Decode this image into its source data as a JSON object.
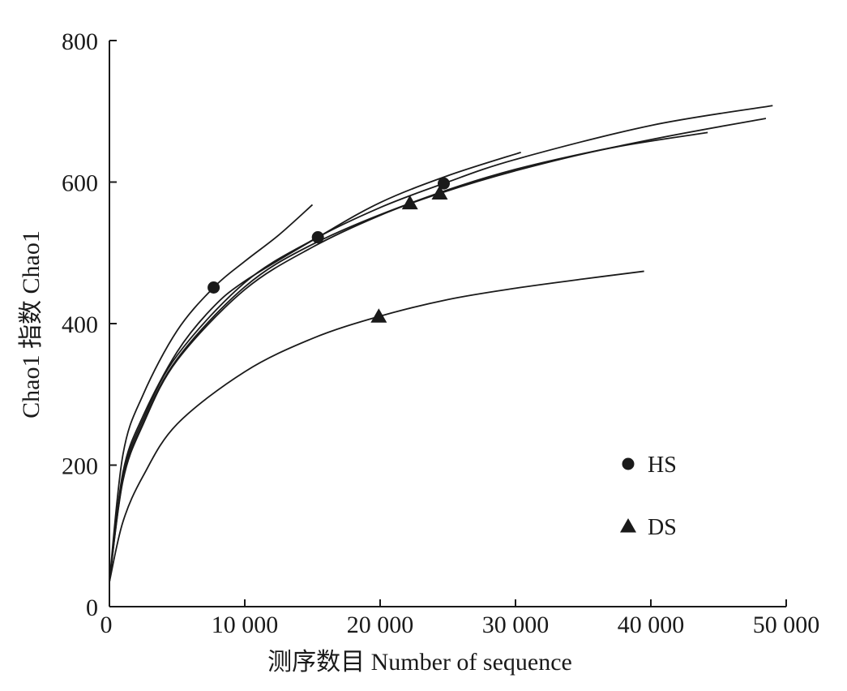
{
  "chart_data": {
    "type": "line",
    "title": "",
    "xlabel": "测序数目 Number of sequence",
    "ylabel": "Chao1 指数 Chao1",
    "xlim": [
      0,
      50000
    ],
    "ylim": [
      0,
      800
    ],
    "x_ticks": [
      {
        "value": 0,
        "label": "0"
      },
      {
        "value": 10000,
        "label": "10 000"
      },
      {
        "value": 20000,
        "label": "20 000"
      },
      {
        "value": 30000,
        "label": "30 000"
      },
      {
        "value": 40000,
        "label": "40 000"
      },
      {
        "value": 50000,
        "label": "50 000"
      }
    ],
    "y_ticks": [
      {
        "value": 0,
        "label": "0"
      },
      {
        "value": 200,
        "label": "200"
      },
      {
        "value": 400,
        "label": "400"
      },
      {
        "value": 600,
        "label": "600"
      },
      {
        "value": 800,
        "label": "800"
      }
    ],
    "grid": false,
    "legend": {
      "position": "lower-right",
      "entries": [
        {
          "label": "HS",
          "marker": "circle"
        },
        {
          "label": "DS",
          "marker": "triangle"
        }
      ]
    },
    "line_color": "#1a1a1a",
    "series": [
      {
        "group": "HS",
        "marker": "circle",
        "marker_point": [
          7700,
          451
        ],
        "points": [
          [
            0,
            35
          ],
          [
            1000,
            215
          ],
          [
            2500,
            300
          ],
          [
            5000,
            390
          ],
          [
            7700,
            451
          ],
          [
            10000,
            488
          ],
          [
            12500,
            525
          ],
          [
            15000,
            568
          ]
        ]
      },
      {
        "group": "HS",
        "marker": "circle",
        "marker_point": [
          15400,
          522
        ],
        "points": [
          [
            0,
            35
          ],
          [
            1000,
            190
          ],
          [
            2500,
            270
          ],
          [
            5000,
            360
          ],
          [
            7500,
            420
          ],
          [
            10000,
            460
          ],
          [
            15400,
            522
          ],
          [
            20000,
            571
          ],
          [
            25000,
            609
          ],
          [
            30400,
            642
          ]
        ]
      },
      {
        "group": "HS",
        "marker": "circle",
        "marker_point": [
          24700,
          598
        ],
        "points": [
          [
            0,
            35
          ],
          [
            1000,
            185
          ],
          [
            2500,
            265
          ],
          [
            5000,
            355
          ],
          [
            10000,
            458
          ],
          [
            15000,
            518
          ],
          [
            20000,
            564
          ],
          [
            24700,
            598
          ],
          [
            30000,
            632
          ],
          [
            40000,
            680
          ],
          [
            49000,
            708
          ]
        ]
      },
      {
        "group": "DS",
        "marker": "triangle",
        "marker_point": [
          22200,
          570
        ],
        "points": [
          [
            0,
            35
          ],
          [
            1000,
            180
          ],
          [
            2500,
            260
          ],
          [
            5000,
            350
          ],
          [
            10000,
            452
          ],
          [
            15000,
            512
          ],
          [
            22200,
            570
          ],
          [
            30000,
            618
          ],
          [
            40000,
            660
          ],
          [
            48500,
            690
          ]
        ]
      },
      {
        "group": "DS",
        "marker": "triangle",
        "marker_point": [
          24400,
          584
        ],
        "points": [
          [
            0,
            35
          ],
          [
            1000,
            178
          ],
          [
            2500,
            258
          ],
          [
            5000,
            348
          ],
          [
            10000,
            448
          ],
          [
            15000,
            508
          ],
          [
            20000,
            553
          ],
          [
            24400,
            584
          ],
          [
            30000,
            616
          ],
          [
            37000,
            648
          ],
          [
            44200,
            670
          ]
        ]
      },
      {
        "group": "DS",
        "marker": "triangle",
        "marker_point": [
          19900,
          410
        ],
        "points": [
          [
            0,
            35
          ],
          [
            1000,
            120
          ],
          [
            2500,
            185
          ],
          [
            5000,
            258
          ],
          [
            10000,
            332
          ],
          [
            15000,
            379
          ],
          [
            19900,
            410
          ],
          [
            25000,
            434
          ],
          [
            30000,
            450
          ],
          [
            35000,
            463
          ],
          [
            39500,
            474
          ]
        ]
      }
    ]
  }
}
